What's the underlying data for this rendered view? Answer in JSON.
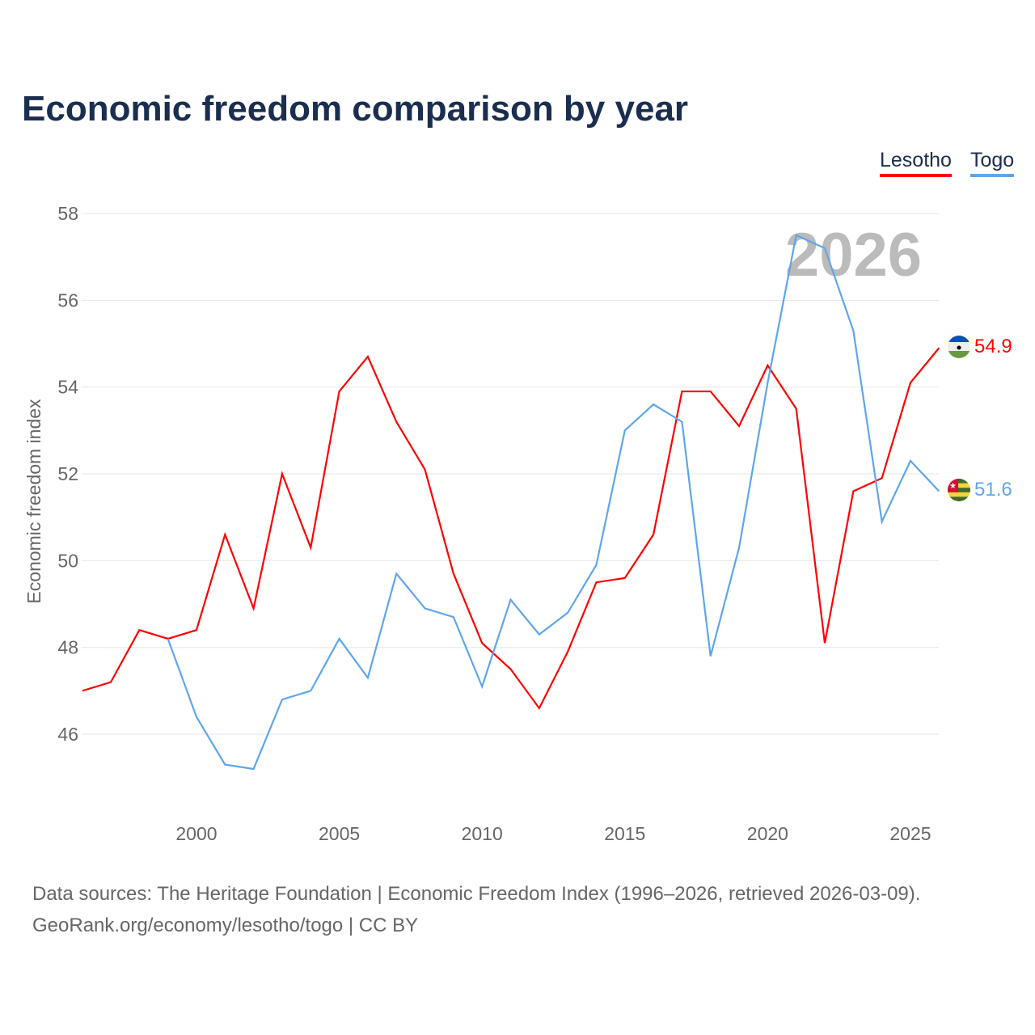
{
  "title": "Economic freedom comparison by year",
  "footer": {
    "line1": "Data sources: The Heritage Foundation | Economic Freedom Index (1996–2026, retrieved 2026-03-09).",
    "line2": "GeoRank.org/economy/lesotho/togo | CC BY"
  },
  "chart_data": {
    "type": "line",
    "title": "Economic freedom comparison by year",
    "ylabel": "Economic freedom index",
    "xlabel": "",
    "xlim": [
      1996,
      2026
    ],
    "ylim": [
      44.2,
      58.6
    ],
    "yticks": [
      46,
      48,
      50,
      52,
      54,
      56,
      58
    ],
    "xticks": [
      2000,
      2005,
      2010,
      2015,
      2020,
      2025
    ],
    "year_watermark": "2026",
    "legend_position": "top-right",
    "series": [
      {
        "name": "Lesotho",
        "color": "#ff0000",
        "end_label": "54.9",
        "x": [
          1996,
          1997,
          1998,
          1999,
          2000,
          2001,
          2002,
          2003,
          2004,
          2005,
          2006,
          2007,
          2008,
          2009,
          2010,
          2011,
          2012,
          2013,
          2014,
          2015,
          2016,
          2017,
          2018,
          2019,
          2020,
          2021,
          2022,
          2023,
          2024,
          2025,
          2026
        ],
        "values": [
          47.0,
          47.2,
          48.4,
          48.2,
          48.4,
          50.6,
          48.9,
          52.0,
          50.3,
          53.9,
          54.7,
          53.2,
          52.1,
          49.7,
          48.1,
          47.5,
          46.6,
          47.9,
          49.5,
          49.6,
          50.6,
          53.9,
          53.9,
          53.1,
          54.5,
          53.5,
          48.1,
          51.6,
          51.9,
          54.1,
          54.9
        ]
      },
      {
        "name": "Togo",
        "color": "#5ea6ec",
        "end_label": "51.6",
        "x": [
          1999,
          2000,
          2001,
          2002,
          2003,
          2004,
          2005,
          2006,
          2007,
          2008,
          2009,
          2010,
          2011,
          2012,
          2013,
          2014,
          2015,
          2016,
          2017,
          2018,
          2019,
          2020,
          2021,
          2022,
          2023,
          2024,
          2025,
          2026
        ],
        "values": [
          48.2,
          46.4,
          45.3,
          45.2,
          46.8,
          47.0,
          48.2,
          47.3,
          49.7,
          48.9,
          48.7,
          47.1,
          49.1,
          48.3,
          48.8,
          49.9,
          53.0,
          53.6,
          53.2,
          47.8,
          50.3,
          54.1,
          57.5,
          57.2,
          55.3,
          50.9,
          52.3,
          51.6
        ]
      }
    ]
  }
}
